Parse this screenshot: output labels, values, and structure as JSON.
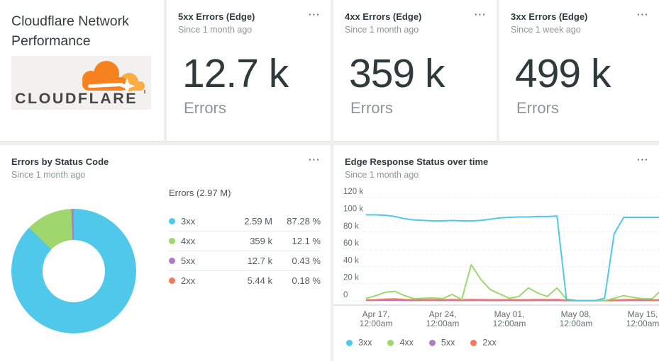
{
  "title_card": {
    "title": "Cloudflare Network Performance",
    "logo_text": "CLOUDFLARE"
  },
  "menu_icon": "⋯",
  "kpi_cards": [
    {
      "title": "5xx Errors (Edge)",
      "subtitle": "Since 1 month ago",
      "value": "12.7 k",
      "label": "Errors"
    },
    {
      "title": "4xx Errors (Edge)",
      "subtitle": "Since 1 month ago",
      "value": "359 k",
      "label": "Errors"
    },
    {
      "title": "3xx Errors (Edge)",
      "subtitle": "Since 1 week ago",
      "value": "499 k",
      "label": "Errors"
    }
  ],
  "donut_card": {
    "title": "Errors by Status Code",
    "subtitle": "Since 1 month ago",
    "table_title": "Errors (2.97 M)"
  },
  "chart_card": {
    "title": "Edge Response Status over time",
    "subtitle": "Since 1 month ago"
  },
  "chart_data": [
    {
      "type": "pie",
      "donut": true,
      "title": "Errors by Status Code",
      "total_label": "Errors (2.97 M)",
      "labels": [
        "3xx",
        "4xx",
        "5xx",
        "2xx"
      ],
      "values": [
        87.28,
        12.1,
        0.43,
        0.18
      ],
      "display_values": [
        "2.59 M",
        "359 k",
        "12.7 k",
        "5.44 k"
      ],
      "display_pcts": [
        "87.28 %",
        "12.1 %",
        "0.43 %",
        "0.18 %"
      ],
      "colors": [
        "#4fc8ea",
        "#9fd76e",
        "#af7ac6",
        "#f2795c"
      ],
      "legend_position": "right-table"
    },
    {
      "type": "line",
      "title": "Edge Response Status over time",
      "unit": "k",
      "ylim": [
        0,
        120
      ],
      "grid": "dashed-horizontal",
      "legend_position": "bottom",
      "yticks": {
        "values": [
          120,
          100,
          80,
          60,
          40,
          20,
          0
        ],
        "labels": [
          "120 k",
          "100 k",
          "80 k",
          "60 k",
          "40 k",
          "20 k",
          "0"
        ]
      },
      "xticks": {
        "indices": [
          1,
          8,
          15,
          22,
          29
        ],
        "labels": [
          [
            "Apr 17,",
            "12:00am"
          ],
          [
            "Apr 24,",
            "12:00am"
          ],
          [
            "May 01,",
            "12:00am"
          ],
          [
            "May 08,",
            "12:00am"
          ],
          [
            "May 15,",
            "12:00am"
          ]
        ]
      },
      "series": [
        {
          "name": "3xx",
          "color": "#4fc8ea",
          "values": [
            100,
            100,
            99.5,
            98,
            95.5,
            94,
            93.5,
            93,
            93,
            93.5,
            93,
            93,
            93.5,
            95,
            96.5,
            97,
            97.5,
            97.5,
            98,
            98,
            98.5,
            1.5,
            0.4,
            0.3,
            0.3,
            3,
            78,
            97,
            97,
            97,
            97,
            97
          ]
        },
        {
          "name": "4xx",
          "color": "#9fd76e",
          "values": [
            3,
            6,
            10,
            11,
            6,
            2.5,
            3,
            3.5,
            2.5,
            7.5,
            1.5,
            42,
            25,
            13,
            8,
            3,
            5,
            15,
            9,
            5,
            15,
            2,
            0.5,
            0.2,
            0.2,
            0.2,
            3,
            6,
            4,
            2.5,
            2.5,
            13
          ]
        },
        {
          "name": "5xx",
          "color": "#af7ac6",
          "values": [
            0.5,
            0.6,
            0.8,
            0.7,
            0.5,
            0.4,
            0.5,
            0.5,
            0.4,
            0.5,
            0.4,
            0.6,
            0.5,
            0.4,
            0.4,
            0.5,
            0.4,
            0.4,
            0.5,
            0.4,
            0.5,
            0.3,
            0.2,
            0.2,
            0.2,
            0.2,
            0.3,
            0.4,
            0.5,
            0.4,
            0.4,
            0.5
          ]
        },
        {
          "name": "2xx",
          "color": "#f2795c",
          "values": [
            1,
            1.2,
            2,
            2.2,
            1.5,
            1.2,
            1.2,
            1.3,
            1.2,
            1.5,
            1.2,
            1.5,
            1.3,
            1.2,
            1.2,
            1.3,
            1.2,
            1.2,
            1.5,
            1.3,
            1.5,
            0.8,
            0.5,
            0.4,
            0.4,
            0.5,
            0.8,
            1.2,
            1.5,
            1.2,
            1,
            1.2
          ]
        }
      ]
    }
  ]
}
